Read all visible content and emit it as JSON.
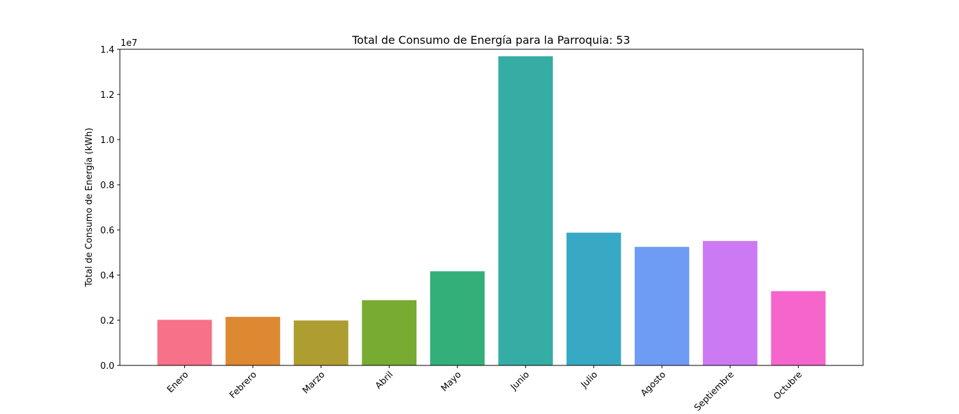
{
  "chart_data": {
    "type": "bar",
    "title": "Total de Consumo de Energía para la Parroquia: 53",
    "xlabel": "",
    "ylabel": "Total de Consumo de Energía (kWh)",
    "y_offset_label": "1e7",
    "categories": [
      "Enero",
      "Febrero",
      "Marzo",
      "Abril",
      "Mayo",
      "Junio",
      "Julio",
      "Agosto",
      "Septiembre",
      "Octubre"
    ],
    "values": [
      2020000,
      2150000,
      1990000,
      2890000,
      4170000,
      13690000,
      5880000,
      5250000,
      5510000,
      3290000
    ],
    "colors": [
      "#f77189",
      "#dc8932",
      "#ae9d31",
      "#77ab31",
      "#33b07a",
      "#36ada4",
      "#38a9c5",
      "#6e9bf4",
      "#cc7af4",
      "#f565cc"
    ],
    "ylim": [
      0,
      14000000
    ],
    "y_ticks": [
      0,
      2000000,
      4000000,
      6000000,
      8000000,
      10000000,
      12000000,
      14000000
    ],
    "y_tick_labels": [
      "0.0",
      "0.2",
      "0.4",
      "0.6",
      "0.8",
      "1.0",
      "1.2",
      "1.4"
    ],
    "grid": false,
    "legend": "none",
    "x_tick_rotation_deg": 45
  }
}
